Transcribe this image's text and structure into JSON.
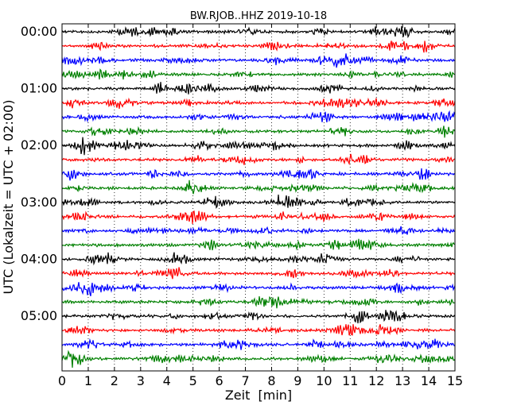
{
  "chart_data": {
    "type": "line",
    "title": "BW.RJOB..HHZ 2019-10-18",
    "xlabel": "Zeit  [min]",
    "ylabel": "UTC (Lokalzeit = UTC + 02:00)",
    "xlim": [
      0,
      15
    ],
    "x_ticks": [
      "0",
      "1",
      "2",
      "3",
      "4",
      "5",
      "6",
      "7",
      "8",
      "9",
      "10",
      "11",
      "12",
      "13",
      "14",
      "15"
    ],
    "y_tick_labels": [
      "00:00",
      "01:00",
      "02:00",
      "03:00",
      "04:00",
      "05:00"
    ],
    "trace_count": 24,
    "trace_interval_min": 15,
    "trace_colors": [
      "#000000",
      "#ff0000",
      "#0000ff",
      "#008000"
    ],
    "grid": "vertical dotted at each minute",
    "notes": "Dayplot seismogram: each row is a 15-minute window of the vertical (HHZ) channel"
  }
}
